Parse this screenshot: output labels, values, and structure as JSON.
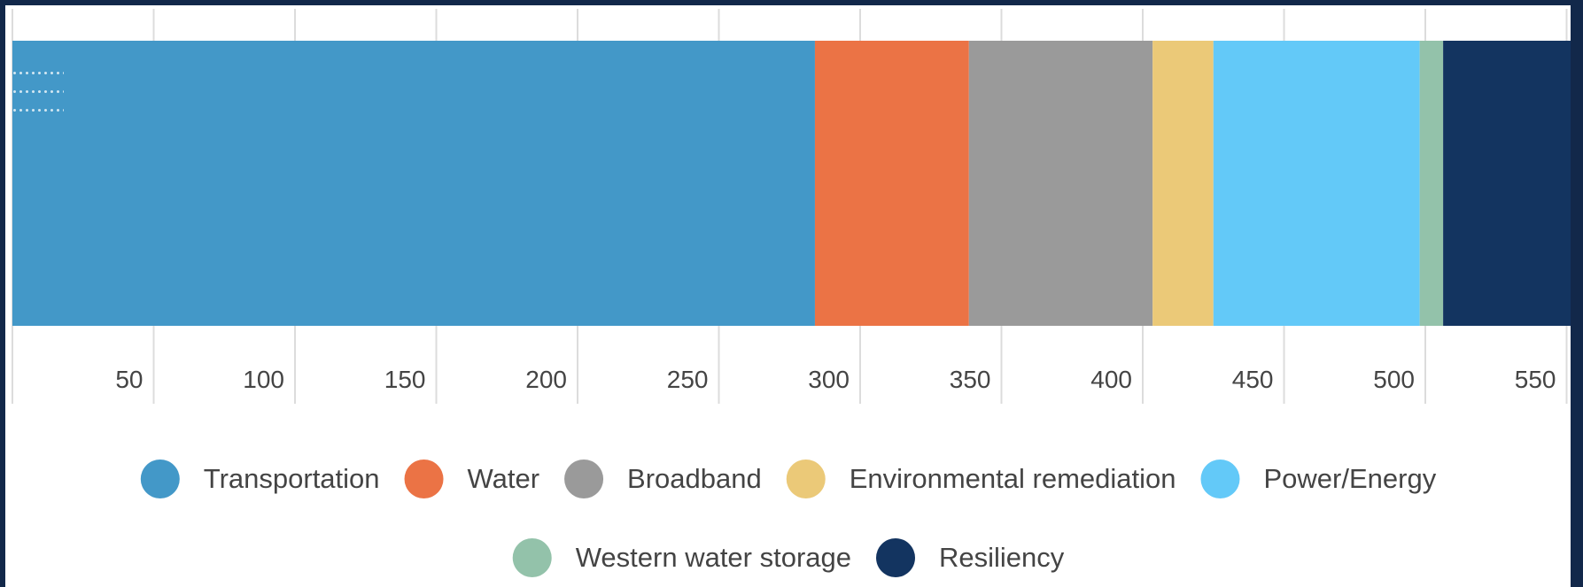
{
  "chart_data": {
    "type": "bar",
    "orientation": "horizontal",
    "stacked": true,
    "xlim": [
      0,
      555
    ],
    "x_ticks": [
      "50",
      "100",
      "150",
      "200",
      "250",
      "300",
      "350",
      "400",
      "450",
      "500",
      "550"
    ],
    "grid": true,
    "legend_position": "bottom",
    "series": [
      {
        "name": "Transportation",
        "value": 284,
        "color": "#4398c8"
      },
      {
        "name": "Water",
        "value": 54.5,
        "color": "#eb7345"
      },
      {
        "name": "Broadband",
        "value": 65,
        "color": "#9a9a9a"
      },
      {
        "name": "Environmental remediation",
        "value": 21.5,
        "color": "#ebc978"
      },
      {
        "name": "Power/Energy",
        "value": 73,
        "color": "#63c9f8"
      },
      {
        "name": "Western water storage",
        "value": 8.3,
        "color": "#93c2aa"
      },
      {
        "name": "Resiliency",
        "value": 46,
        "color": "#133460"
      }
    ]
  }
}
